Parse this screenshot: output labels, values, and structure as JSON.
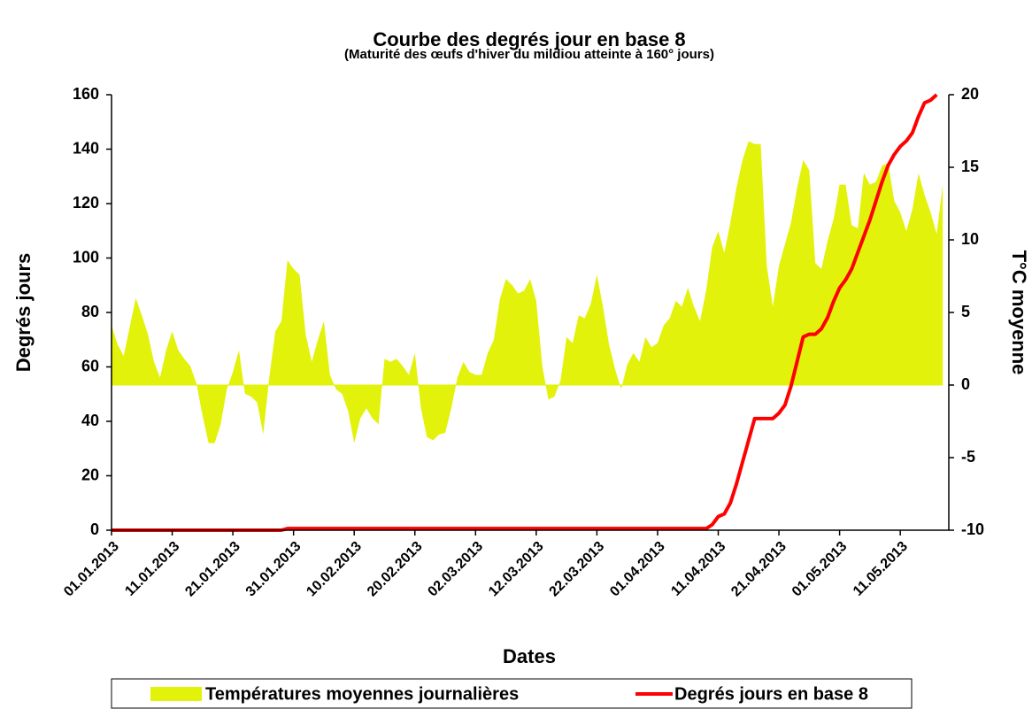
{
  "chart_data": {
    "type": "area_line_dual",
    "title": "Courbe des degrés jour en base 8",
    "subtitle": "(Maturité des œufs d'hiver du mildiou atteinte à 160° jours)",
    "x_label": "Dates",
    "y_label": "Degrés jours",
    "y2_label": "T°C moyenne",
    "categories": [
      "01.01.2013",
      null,
      null,
      null,
      null,
      null,
      null,
      null,
      null,
      null,
      "11.01.2013",
      null,
      null,
      null,
      null,
      null,
      null,
      null,
      null,
      null,
      "21.01.2013",
      null,
      null,
      null,
      null,
      null,
      null,
      null,
      null,
      null,
      "31.01.2013",
      null,
      null,
      null,
      null,
      null,
      null,
      null,
      null,
      null,
      "10.02.2013",
      null,
      null,
      null,
      null,
      null,
      null,
      null,
      null,
      null,
      "20.02.2013",
      null,
      null,
      null,
      null,
      null,
      null,
      null,
      null,
      null,
      "02.03.2013",
      null,
      null,
      null,
      null,
      null,
      null,
      null,
      null,
      null,
      "12.03.2013",
      null,
      null,
      null,
      null,
      null,
      null,
      null,
      null,
      null,
      "22.03.2013",
      null,
      null,
      null,
      null,
      null,
      null,
      null,
      null,
      null,
      "01.04.2013",
      null,
      null,
      null,
      null,
      null,
      null,
      null,
      null,
      null,
      "11.04.2013",
      null,
      null,
      null,
      null,
      null,
      null,
      null,
      null,
      null,
      "21.04.2013",
      null,
      null,
      null,
      null,
      null,
      null,
      null,
      null,
      null,
      "01.05.2013",
      null,
      null,
      null,
      null,
      null,
      null,
      null,
      null,
      null,
      "11.05.2013",
      null,
      null,
      null,
      null,
      null,
      null,
      null
    ],
    "series": [
      {
        "name": "Températures moyennes journalières",
        "color": "#e2f20a",
        "kind": "area",
        "axis": "y2",
        "values": [
          4.1,
          2.8,
          2,
          4,
          6,
          4.8,
          3.5,
          1.6,
          0.5,
          2.4,
          3.7,
          2.4,
          1.8,
          1.3,
          0.1,
          -2.1,
          -4,
          -4,
          -2.7,
          -0.3,
          0.9,
          2.4,
          -0.6,
          -0.8,
          -1.2,
          -3.4,
          0.5,
          3.7,
          4.4,
          8.6,
          8,
          7.6,
          3.5,
          1.6,
          3.1,
          4.4,
          0.7,
          -0.3,
          -0.6,
          -1.8,
          -4,
          -2.3,
          -1.6,
          -2.3,
          -2.7,
          1.8,
          1.6,
          1.8,
          1.3,
          0.7,
          2.2,
          -1.6,
          -3.6,
          -3.8,
          -3.4,
          -3.3,
          -1.6,
          0.5,
          1.6,
          0.9,
          0.7,
          0.7,
          2.2,
          3.1,
          5.9,
          7.3,
          6.9,
          6.3,
          6.5,
          7.3,
          5.8,
          1.3,
          -1,
          -0.8,
          0.3,
          3.3,
          2.9,
          4.8,
          4.6,
          5.6,
          7.6,
          5.4,
          2.8,
          1.1,
          -0.3,
          1.4,
          2.2,
          1.6,
          3.3,
          2.6,
          2.9,
          4.1,
          4.6,
          5.8,
          5.4,
          6.7,
          5.4,
          4.4,
          6.5,
          9.5,
          10.6,
          9.1,
          11.2,
          13.6,
          15.5,
          16.8,
          16.6,
          16.6,
          8.2,
          5.4,
          8.2,
          9.7,
          11.2,
          13.6,
          15.5,
          14.8,
          8.4,
          8,
          9.9,
          11.4,
          13.8,
          13.8,
          11,
          10.8,
          14.6,
          13.8,
          14,
          15.1,
          15.3,
          12.7,
          11.9,
          10.6,
          12.1,
          14.6,
          13.1,
          11.9,
          10.4,
          13.8
        ]
      },
      {
        "name": "Degrés jours en base 8",
        "color": "#ff0000",
        "kind": "line",
        "axis": "y",
        "values": [
          0,
          0,
          0,
          0,
          0,
          0,
          0,
          0,
          0,
          0,
          0,
          0,
          0,
          0,
          0,
          0,
          0,
          0,
          0,
          0,
          0,
          0,
          0,
          0,
          0,
          0,
          0,
          0,
          0,
          0.6,
          0.6,
          0.6,
          0.6,
          0.6,
          0.6,
          0.6,
          0.6,
          0.6,
          0.6,
          0.6,
          0.6,
          0.6,
          0.6,
          0.6,
          0.6,
          0.6,
          0.6,
          0.6,
          0.6,
          0.6,
          0.6,
          0.6,
          0.6,
          0.6,
          0.6,
          0.6,
          0.6,
          0.6,
          0.6,
          0.6,
          0.6,
          0.6,
          0.6,
          0.6,
          0.6,
          0.6,
          0.6,
          0.6,
          0.6,
          0.6,
          0.6,
          0.6,
          0.6,
          0.6,
          0.6,
          0.6,
          0.6,
          0.6,
          0.6,
          0.6,
          0.6,
          0.6,
          0.6,
          0.6,
          0.6,
          0.6,
          0.6,
          0.6,
          0.6,
          0.6,
          0.6,
          0.6,
          0.6,
          0.6,
          0.6,
          0.6,
          0.6,
          0.6,
          0.6,
          2,
          5,
          6,
          10,
          17,
          25,
          33,
          41,
          41,
          41,
          41,
          43,
          46,
          53,
          62,
          71,
          72,
          72,
          74,
          78,
          84,
          89,
          92,
          96,
          102,
          108,
          114,
          121,
          128,
          134,
          138,
          141,
          143,
          146,
          152,
          157,
          158,
          160,
          null
        ]
      }
    ],
    "ylim": [
      0,
      160
    ],
    "yticks": [
      0,
      20,
      40,
      60,
      80,
      100,
      120,
      140,
      160
    ],
    "y2lim": [
      -10,
      20
    ],
    "y2ticks": [
      -10,
      -5,
      0,
      5,
      10,
      15,
      20
    ],
    "grid": false,
    "legend": "bottom"
  }
}
